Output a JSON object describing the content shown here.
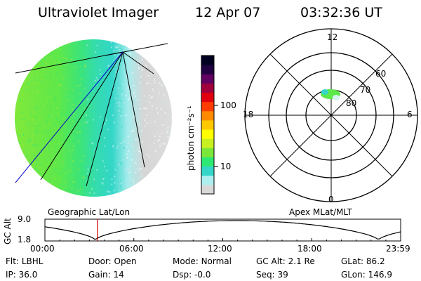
{
  "header": {
    "instrument": "Ultraviolet Imager",
    "date": "12 Apr 07",
    "time": "03:32:36 UT"
  },
  "colorbar": {
    "label": "photon cm⁻²s⁻¹",
    "ticks": [
      "100",
      "10"
    ],
    "scale": "log",
    "colors": [
      "#d8d8d8",
      "#aeeeee",
      "#33d6c8",
      "#2ee874",
      "#7ae63a",
      "#c8f020",
      "#ffff00",
      "#ffc800",
      "#ff8a00",
      "#ff3c00",
      "#e00010",
      "#a0003c",
      "#600060",
      "#200040",
      "#000020"
    ]
  },
  "polar_plot": {
    "mlt_labels": [
      "12",
      "18",
      "6",
      "0"
    ],
    "mlat_labels": [
      "60",
      "70",
      "80"
    ]
  },
  "timeline": {
    "left_title": "Geographic Lat/Lon",
    "right_title": "Apex MLat/MLT",
    "y_label": "GC Alt",
    "y_ticks": [
      "9.0",
      "1.8"
    ],
    "x_ticks": [
      "00:00",
      "06:00",
      "12:00",
      "18:00",
      "23:59"
    ],
    "current_time_marker_hours": 3.54,
    "marker_color": "#cc0000"
  },
  "status": {
    "row1": [
      {
        "label": "Flt:",
        "value": "LBHL"
      },
      {
        "label": "Door:",
        "value": "Open"
      },
      {
        "label": "Mode:",
        "value": "Normal"
      },
      {
        "label": "GC Alt:",
        "value": "2.1 Re"
      },
      {
        "label": "GLat:",
        "value": "86.2"
      }
    ],
    "row2": [
      {
        "label": "IP:",
        "value": "36.0"
      },
      {
        "label": "Gain:",
        "value": "14"
      },
      {
        "label": "Dsp:",
        "value": "-0.0"
      },
      {
        "label": "Seq:",
        "value": "39"
      },
      {
        "label": "GLon:",
        "value": "146.9"
      }
    ]
  }
}
